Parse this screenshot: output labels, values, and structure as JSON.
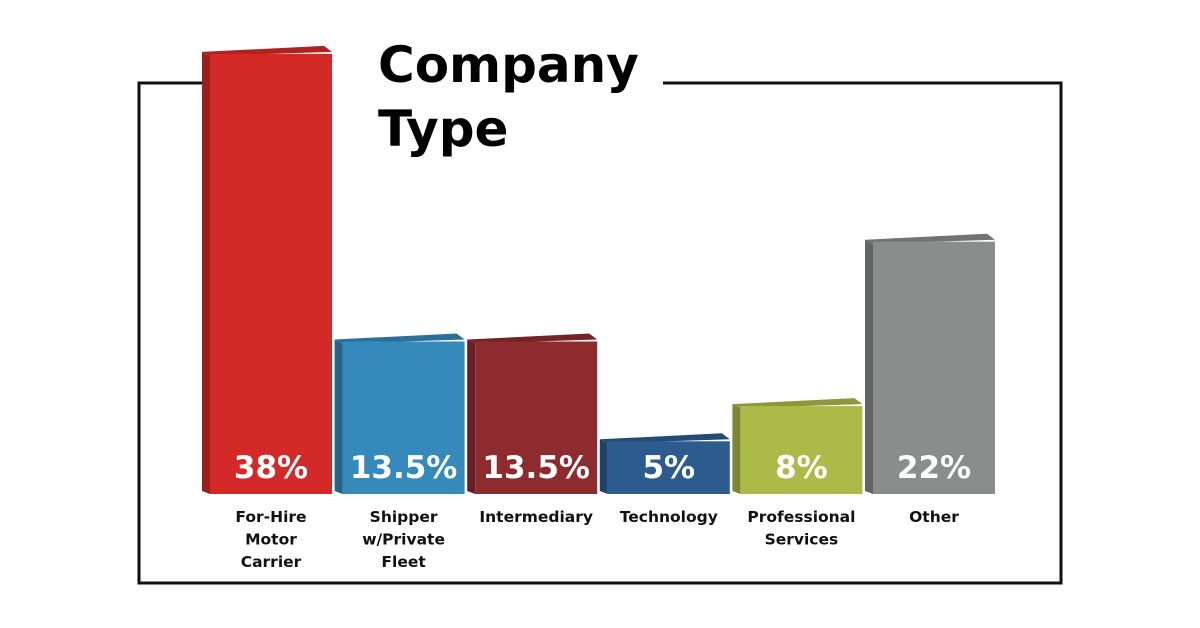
{
  "chart_data": {
    "type": "bar",
    "title_lines": [
      "Company",
      "Type"
    ],
    "xlabel": "",
    "ylabel": "",
    "ylim": [
      0,
      40
    ],
    "grid": false,
    "legend": "none",
    "categories": [
      {
        "label_lines": [
          "For-Hire",
          "Motor",
          "Carrier"
        ],
        "value": 38,
        "value_label": "38%",
        "color": "#d42a27"
      },
      {
        "label_lines": [
          "Shipper",
          "w/Private",
          "Fleet"
        ],
        "value": 13.5,
        "value_label": "13.5%",
        "color": "#3589bb"
      },
      {
        "label_lines": [
          "Intermediary"
        ],
        "value": 13.5,
        "value_label": "13.5%",
        "color": "#8e2b2f"
      },
      {
        "label_lines": [
          "Technology"
        ],
        "value": 5,
        "value_label": "5%",
        "color": "#2c5b8e"
      },
      {
        "label_lines": [
          "Professional",
          "Services"
        ],
        "value": 8,
        "value_label": "8%",
        "color": "#abbb47"
      },
      {
        "label_lines": [
          "Other"
        ],
        "value": 22,
        "value_label": "22%",
        "color": "#8b8c8c"
      }
    ]
  }
}
